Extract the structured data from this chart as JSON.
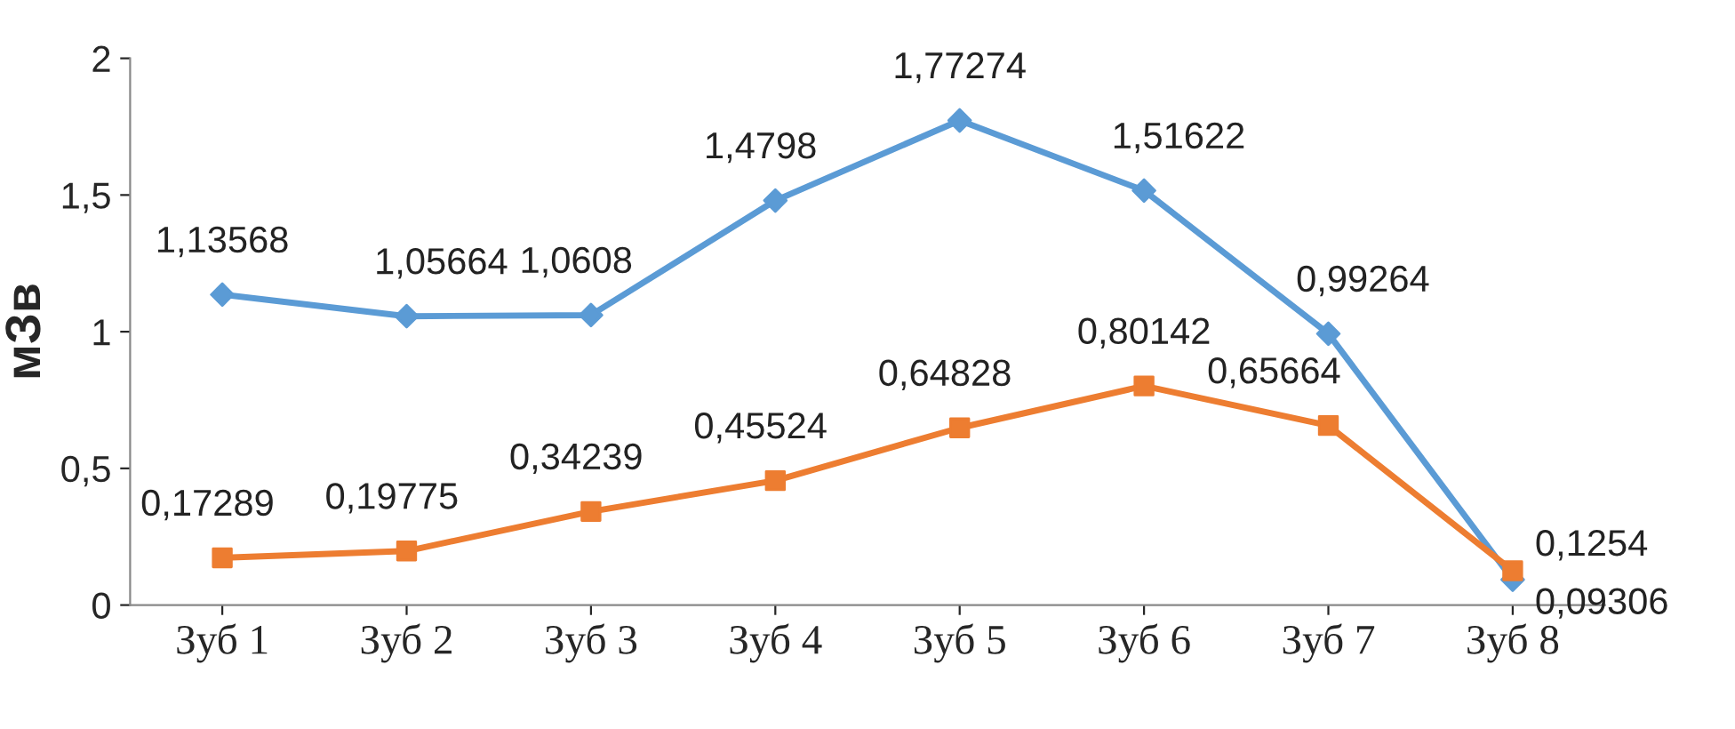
{
  "chart_data": {
    "type": "line",
    "ylabel": "мЗв",
    "categories": [
      "Зуб 1",
      "Зуб 2",
      "Зуб 3",
      "Зуб 4",
      "Зуб 5",
      "Зуб 6",
      "Зуб 7",
      "Зуб 8"
    ],
    "series": [
      {
        "color": "#5b9bd5",
        "marker": "diamond",
        "values": [
          1.13568,
          1.05664,
          1.0608,
          1.4798,
          1.77274,
          1.51622,
          0.99264,
          0.09306
        ],
        "value_labels": [
          "1,13568",
          "1,05664",
          "1,0608",
          "1,4798",
          "1,77274",
          "1,51622",
          "0,99264",
          "0,09306"
        ]
      },
      {
        "color": "#ed7d31",
        "marker": "square",
        "values": [
          0.17289,
          0.19775,
          0.34239,
          0.45524,
          0.64828,
          0.80142,
          0.65664,
          0.1254
        ],
        "value_labels": [
          "0,17289",
          "0,19775",
          "0,34239",
          "0,45524",
          "0,64828",
          "0,80142",
          "0,65664",
          "0,1254"
        ]
      }
    ],
    "ylim": [
      0,
      2
    ],
    "yticks": [
      0,
      {
        "value": 0.5,
        "label": "0,5"
      },
      1,
      {
        "value": 1.5,
        "label": "1,5"
      },
      2
    ],
    "grid": false,
    "legend": false,
    "line_style": "solid"
  }
}
